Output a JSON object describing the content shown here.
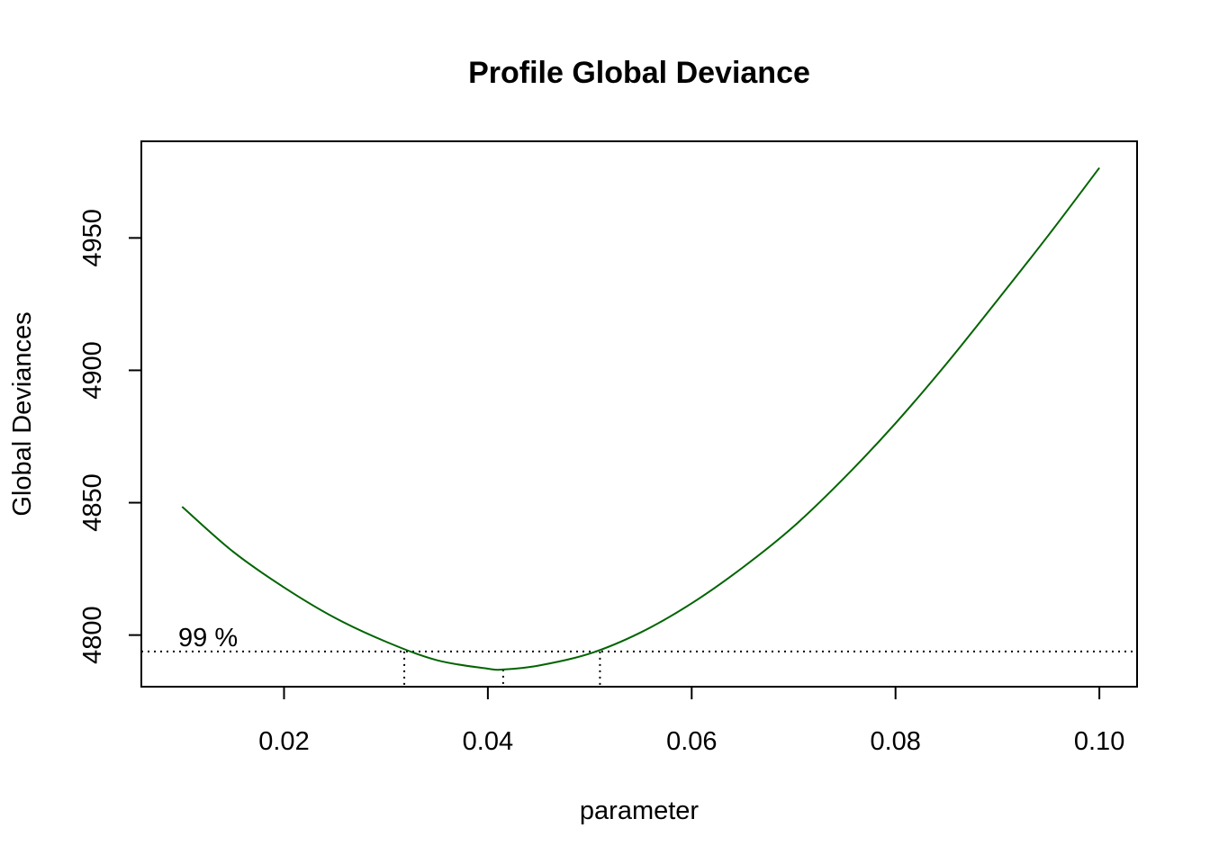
{
  "chart_data": {
    "type": "line",
    "title": "Profile Global Deviance",
    "xlabel": "parameter",
    "ylabel": "Global Deviances",
    "xlim": [
      0.006,
      0.1037
    ],
    "ylim": [
      4780.5,
      4986.5
    ],
    "x_ticks": [
      0.02,
      0.04,
      0.06,
      0.08,
      0.1
    ],
    "x_tick_labels": [
      "0.02",
      "0.04",
      "0.06",
      "0.08",
      "0.10"
    ],
    "y_ticks": [
      4800,
      4850,
      4900,
      4950
    ],
    "y_tick_labels": [
      "4800",
      "4850",
      "4900",
      "4950"
    ],
    "series": [
      {
        "color": "#006400",
        "x": [
          0.01,
          0.015,
          0.02,
          0.025,
          0.03,
          0.035,
          0.04,
          0.0415,
          0.045,
          0.05,
          0.055,
          0.06,
          0.065,
          0.07,
          0.075,
          0.08,
          0.085,
          0.09,
          0.095,
          0.1
        ],
        "y": [
          4848.5,
          4831.5,
          4818.0,
          4806.5,
          4797.5,
          4790.5,
          4787.3,
          4787.0,
          4788.5,
          4793.0,
          4801.0,
          4812.0,
          4825.5,
          4841.0,
          4859.5,
          4880.0,
          4902.5,
          4926.5,
          4951.0,
          4976.5
        ]
      }
    ],
    "annotations": {
      "confidence_label": "99 %",
      "cutoff_y": 4793.8,
      "ci_lower": 0.0318,
      "ci_upper": 0.051,
      "minimum_x": 0.0415,
      "minimum_y": 4787.0
    },
    "grid": false,
    "legend": "none"
  }
}
